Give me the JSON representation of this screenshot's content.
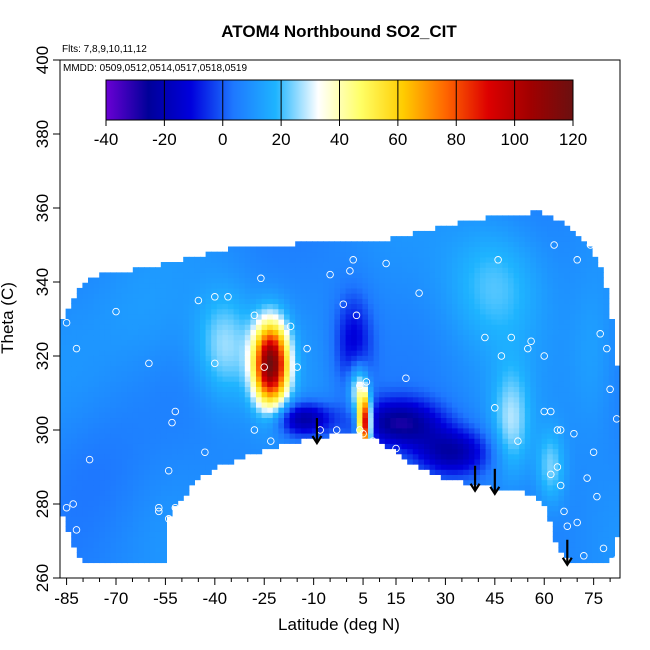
{
  "chart_data": {
    "type": "heatmap",
    "title": "ATOM4 Northbound SO2_CIT",
    "flights_note": "Flts: 7,8,9,10,11,12",
    "dates_note": "MMDD: 0509,0512,0514,0517,0518,0519",
    "xlabel": "Latitude (deg N)",
    "ylabel": "Theta (C)",
    "xlim": [
      -87,
      83
    ],
    "ylim": [
      260,
      400
    ],
    "x_ticks": [
      -85,
      -70,
      -55,
      -40,
      -25,
      -10,
      5,
      15,
      30,
      45,
      60,
      75
    ],
    "y_ticks": [
      260,
      280,
      300,
      320,
      340,
      360,
      380,
      400
    ],
    "colorbar": {
      "range": [
        -40,
        120
      ],
      "ticks": [
        -40,
        -20,
        0,
        20,
        40,
        60,
        80,
        100,
        120
      ],
      "colors": [
        "#6a00d4",
        "#000099",
        "#0000dd",
        "#1e78ff",
        "#1eb4ff",
        "#ffffff",
        "#ffff66",
        "#ffcc00",
        "#ff6600",
        "#dd0000",
        "#a00000",
        "#6b1010"
      ]
    },
    "background_value": 8,
    "region_top": [
      [
        -87,
        329
      ],
      [
        -80,
        340
      ],
      [
        -75,
        342
      ],
      [
        -60,
        344
      ],
      [
        -45,
        347
      ],
      [
        -35,
        349
      ],
      [
        -20,
        350
      ],
      [
        -5,
        351
      ],
      [
        10,
        351
      ],
      [
        25,
        354
      ],
      [
        40,
        357
      ],
      [
        50,
        358
      ],
      [
        58,
        359
      ],
      [
        66,
        356
      ],
      [
        72,
        351
      ],
      [
        75,
        348
      ],
      [
        78,
        342
      ],
      [
        80,
        332
      ],
      [
        82,
        320
      ],
      [
        83,
        305
      ]
    ],
    "region_bottom": [
      [
        -87,
        279
      ],
      [
        -85,
        274
      ],
      [
        -82,
        266
      ],
      [
        -78,
        264
      ],
      [
        -54,
        264
      ],
      [
        -54,
        277
      ],
      [
        -47,
        285
      ],
      [
        -40,
        290
      ],
      [
        -30,
        293
      ],
      [
        -20,
        296
      ],
      [
        -10,
        298
      ],
      [
        0,
        299
      ],
      [
        8,
        298
      ],
      [
        18,
        292
      ],
      [
        30,
        287
      ],
      [
        40,
        285
      ],
      [
        48,
        284
      ],
      [
        55,
        283
      ],
      [
        60,
        280
      ],
      [
        62,
        274
      ],
      [
        63,
        270
      ],
      [
        68,
        264
      ],
      [
        80,
        264
      ],
      [
        82,
        270
      ],
      [
        83,
        278
      ]
    ],
    "features": [
      {
        "x": -23,
        "y": 318,
        "amp": 108,
        "sx": 3.6,
        "sy": 7.5
      },
      {
        "x": 5.5,
        "y": 302,
        "amp": 98,
        "sx": 1.4,
        "sy": 5.0
      },
      {
        "x": 3.5,
        "y": 311,
        "amp": 30,
        "sx": 2.0,
        "sy": 5.0
      },
      {
        "x": -13,
        "y": 303,
        "amp": -32,
        "sx": 6.0,
        "sy": 3.2
      },
      {
        "x": 16,
        "y": 302,
        "amp": -34,
        "sx": 9.0,
        "sy": 4.5
      },
      {
        "x": 32,
        "y": 294,
        "amp": -30,
        "sx": 8.0,
        "sy": 4.5
      },
      {
        "x": 2,
        "y": 324,
        "amp": -20,
        "sx": 4.0,
        "sy": 9.0
      },
      {
        "x": -37,
        "y": 323,
        "amp": 18,
        "sx": 6.0,
        "sy": 10.0
      },
      {
        "x": 45,
        "y": 340,
        "amp": 14,
        "sx": 10.0,
        "sy": 12.0
      },
      {
        "x": 50,
        "y": 302,
        "amp": 18,
        "sx": 4.0,
        "sy": 10.0
      },
      {
        "x": 62,
        "y": 290,
        "amp": 16,
        "sx": 3.0,
        "sy": 7.0
      },
      {
        "x": -60,
        "y": 330,
        "amp": 5,
        "sx": 12.0,
        "sy": 12.0
      },
      {
        "x": 75,
        "y": 320,
        "amp": 6,
        "sx": 5.0,
        "sy": 15.0
      },
      {
        "x": -75,
        "y": 290,
        "amp": -4,
        "sx": 10.0,
        "sy": 12.0
      }
    ],
    "samples": [
      [
        -85,
        329
      ],
      [
        -82,
        322
      ],
      [
        -80,
        343
      ],
      [
        -78,
        292
      ],
      [
        -83,
        280
      ],
      [
        -82,
        273
      ],
      [
        -85,
        279
      ],
      [
        -70,
        332
      ],
      [
        -60,
        318
      ],
      [
        -52,
        305
      ],
      [
        -53,
        302
      ],
      [
        -54,
        289
      ],
      [
        -57,
        279
      ],
      [
        -57,
        278
      ],
      [
        -54,
        276
      ],
      [
        -52,
        279
      ],
      [
        -45,
        335
      ],
      [
        -40,
        336
      ],
      [
        -36,
        336
      ],
      [
        -40,
        318
      ],
      [
        -43,
        294
      ],
      [
        -28,
        331
      ],
      [
        -28,
        300
      ],
      [
        -26,
        341
      ],
      [
        -25,
        317
      ],
      [
        -23,
        297
      ],
      [
        -17,
        328
      ],
      [
        -15,
        317
      ],
      [
        -12,
        322
      ],
      [
        -8,
        300
      ],
      [
        -5,
        342
      ],
      [
        -3,
        300
      ],
      [
        -1,
        334
      ],
      [
        1,
        343
      ],
      [
        2,
        346
      ],
      [
        3,
        331
      ],
      [
        4,
        312
      ],
      [
        4,
        300
      ],
      [
        5,
        299
      ],
      [
        6,
        313
      ],
      [
        8,
        297
      ],
      [
        12,
        345
      ],
      [
        15,
        295
      ],
      [
        18,
        314
      ],
      [
        22,
        337
      ],
      [
        42,
        325
      ],
      [
        45,
        306
      ],
      [
        46,
        346
      ],
      [
        47,
        320
      ],
      [
        50,
        325
      ],
      [
        52,
        297
      ],
      [
        55,
        322
      ],
      [
        56,
        324
      ],
      [
        60,
        320
      ],
      [
        60,
        305
      ],
      [
        62,
        305
      ],
      [
        64,
        300
      ],
      [
        64,
        290
      ],
      [
        65,
        300
      ],
      [
        66,
        278
      ],
      [
        67,
        274
      ],
      [
        69,
        299
      ],
      [
        63,
        350
      ],
      [
        70,
        346
      ],
      [
        74,
        350
      ],
      [
        78,
        354
      ],
      [
        77,
        326
      ],
      [
        79,
        322
      ],
      [
        80,
        311
      ],
      [
        82,
        303
      ],
      [
        70,
        275
      ],
      [
        62,
        288
      ],
      [
        75,
        294
      ],
      [
        73,
        287
      ],
      [
        65,
        285
      ],
      [
        78,
        268
      ],
      [
        72,
        266
      ],
      [
        82,
        265
      ],
      [
        76,
        282
      ]
    ],
    "arrows": [
      -9,
      39,
      45,
      67
    ]
  }
}
